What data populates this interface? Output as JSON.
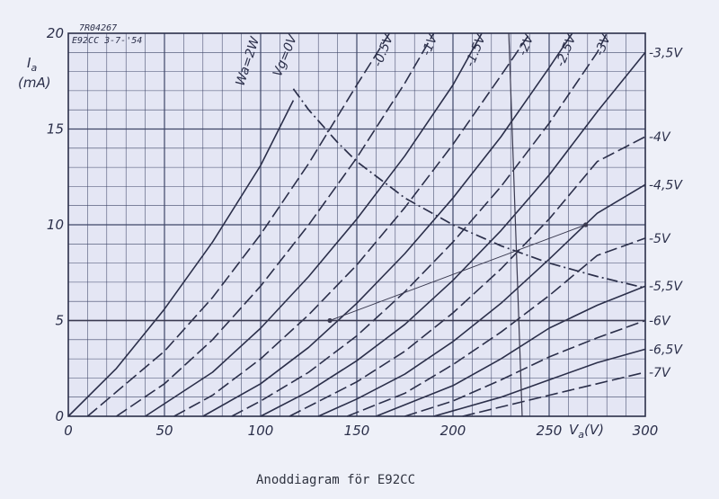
{
  "header": {
    "ref": "7R04267",
    "tube_date": "E92CC 3-7-'54"
  },
  "caption": "Anoddiagram för E92CC",
  "chart_data": {
    "type": "line",
    "title": "",
    "xlabel": "Va(V)",
    "ylabel": "Ia (mA)",
    "xlim": [
      0,
      300
    ],
    "ylim": [
      0,
      20
    ],
    "x_ticks": [
      {
        "v": 0,
        "label": "0"
      },
      {
        "v": 50,
        "label": "50"
      },
      {
        "v": 100,
        "label": "100"
      },
      {
        "v": 150,
        "label": "150"
      },
      {
        "v": 200,
        "label": "200"
      },
      {
        "v": 250,
        "label": "250"
      },
      {
        "v": 300,
        "label": "300"
      }
    ],
    "y_ticks": [
      {
        "v": 0,
        "label": "0"
      },
      {
        "v": 5,
        "label": "5"
      },
      {
        "v": 10,
        "label": "10"
      },
      {
        "v": 15,
        "label": "15"
      },
      {
        "v": 20,
        "label": "20"
      }
    ],
    "grid": true,
    "series": [
      {
        "name": "Vg=0V",
        "dashed": false,
        "label_pos": "top",
        "points": [
          [
            0,
            0
          ],
          [
            25,
            2.5
          ],
          [
            50,
            5.6
          ],
          [
            75,
            9.1
          ],
          [
            100,
            13.1
          ],
          [
            117,
            16.5
          ]
        ]
      },
      {
        "name": "-0.5V",
        "dashed": true,
        "label_pos": "top",
        "points": [
          [
            10,
            0
          ],
          [
            50,
            3.4
          ],
          [
            75,
            6.2
          ],
          [
            100,
            9.5
          ],
          [
            125,
            13.2
          ],
          [
            150,
            17.3
          ],
          [
            167,
            20
          ]
        ]
      },
      {
        "name": "-1V",
        "dashed": true,
        "label_pos": "top",
        "points": [
          [
            25,
            0
          ],
          [
            50,
            1.7
          ],
          [
            75,
            4.0
          ],
          [
            100,
            6.8
          ],
          [
            125,
            10.0
          ],
          [
            150,
            13.5
          ],
          [
            175,
            17.4
          ],
          [
            190,
            20
          ]
        ]
      },
      {
        "name": "-1.5V",
        "dashed": false,
        "label_pos": "top",
        "points": [
          [
            40,
            0
          ],
          [
            75,
            2.3
          ],
          [
            100,
            4.6
          ],
          [
            125,
            7.3
          ],
          [
            150,
            10.3
          ],
          [
            175,
            13.6
          ],
          [
            200,
            17.3
          ],
          [
            215,
            20
          ]
        ]
      },
      {
        "name": "-2V",
        "dashed": true,
        "label_pos": "top",
        "points": [
          [
            55,
            0
          ],
          [
            75,
            1.1
          ],
          [
            100,
            3.0
          ],
          [
            125,
            5.3
          ],
          [
            150,
            7.9
          ],
          [
            175,
            10.9
          ],
          [
            200,
            14.2
          ],
          [
            225,
            17.8
          ],
          [
            240,
            20
          ]
        ]
      },
      {
        "name": "-2.5V",
        "dashed": false,
        "label_pos": "top",
        "points": [
          [
            70,
            0
          ],
          [
            100,
            1.7
          ],
          [
            125,
            3.6
          ],
          [
            150,
            5.9
          ],
          [
            175,
            8.5
          ],
          [
            200,
            11.4
          ],
          [
            225,
            14.6
          ],
          [
            250,
            18.2
          ],
          [
            262,
            20
          ]
        ]
      },
      {
        "name": "-3V",
        "dashed": true,
        "label_pos": "top",
        "points": [
          [
            85,
            0
          ],
          [
            100,
            0.8
          ],
          [
            125,
            2.3
          ],
          [
            150,
            4.2
          ],
          [
            175,
            6.5
          ],
          [
            200,
            9.1
          ],
          [
            225,
            12.0
          ],
          [
            250,
            15.3
          ],
          [
            275,
            19.0
          ],
          [
            280,
            20
          ]
        ]
      },
      {
        "name": "-3,5V",
        "dashed": false,
        "label_pos": "right",
        "points": [
          [
            100,
            0
          ],
          [
            125,
            1.3
          ],
          [
            150,
            2.9
          ],
          [
            175,
            4.8
          ],
          [
            200,
            7.1
          ],
          [
            225,
            9.7
          ],
          [
            250,
            12.6
          ],
          [
            275,
            15.9
          ],
          [
            300,
            19.0
          ]
        ]
      },
      {
        "name": "-4V",
        "dashed": true,
        "label_pos": "right",
        "points": [
          [
            115,
            0
          ],
          [
            150,
            1.8
          ],
          [
            175,
            3.4
          ],
          [
            200,
            5.4
          ],
          [
            225,
            7.7
          ],
          [
            250,
            10.3
          ],
          [
            275,
            13.3
          ],
          [
            300,
            14.6
          ]
        ]
      },
      {
        "name": "-4,5V",
        "dashed": false,
        "label_pos": "right",
        "points": [
          [
            130,
            0
          ],
          [
            150,
            0.9
          ],
          [
            175,
            2.2
          ],
          [
            200,
            3.9
          ],
          [
            225,
            5.9
          ],
          [
            250,
            8.2
          ],
          [
            275,
            10.6
          ],
          [
            300,
            12.1
          ]
        ]
      },
      {
        "name": "-5V",
        "dashed": true,
        "label_pos": "right",
        "points": [
          [
            145,
            0
          ],
          [
            175,
            1.2
          ],
          [
            200,
            2.7
          ],
          [
            225,
            4.4
          ],
          [
            250,
            6.3
          ],
          [
            275,
            8.4
          ],
          [
            300,
            9.3
          ]
        ]
      },
      {
        "name": "-5,5V",
        "dashed": false,
        "label_pos": "right",
        "points": [
          [
            160,
            0
          ],
          [
            200,
            1.6
          ],
          [
            225,
            3.0
          ],
          [
            250,
            4.6
          ],
          [
            275,
            5.8
          ],
          [
            300,
            6.8
          ]
        ]
      },
      {
        "name": "-6V",
        "dashed": true,
        "label_pos": "right",
        "points": [
          [
            175,
            0
          ],
          [
            200,
            0.8
          ],
          [
            225,
            1.9
          ],
          [
            250,
            3.1
          ],
          [
            275,
            4.1
          ],
          [
            300,
            5.0
          ]
        ]
      },
      {
        "name": "-6,5V",
        "dashed": false,
        "label_pos": "right",
        "points": [
          [
            190,
            0
          ],
          [
            225,
            1.0
          ],
          [
            250,
            1.9
          ],
          [
            275,
            2.8
          ],
          [
            300,
            3.5
          ]
        ]
      },
      {
        "name": "-7V",
        "dashed": true,
        "label_pos": "right",
        "points": [
          [
            205,
            0
          ],
          [
            250,
            1.1
          ],
          [
            275,
            1.7
          ],
          [
            300,
            2.3
          ]
        ]
      }
    ],
    "pa_curve": {
      "name": "Wa=2W",
      "points": [
        [
          117,
          17.1
        ],
        [
          125,
          16.0
        ],
        [
          140,
          14.3
        ],
        [
          150,
          13.3
        ],
        [
          175,
          11.4
        ],
        [
          200,
          10.0
        ],
        [
          225,
          8.9
        ],
        [
          250,
          8.0
        ],
        [
          275,
          7.3
        ],
        [
          300,
          6.7
        ]
      ]
    },
    "load_lines": [
      {
        "points": [
          [
            136,
            5.0
          ],
          [
            269,
            10.0
          ]
        ]
      },
      {
        "points": [
          [
            0,
            5.0
          ],
          [
            300,
            5.0
          ]
        ]
      }
    ],
    "vertical_lines": [
      {
        "points": [
          [
            229,
            20
          ],
          [
            236,
            0
          ]
        ]
      }
    ]
  },
  "colors": {
    "paper": "#eef0f8",
    "grid": "#3f4668",
    "curve": "#2b2f4a",
    "ink": "#3a3a50"
  }
}
